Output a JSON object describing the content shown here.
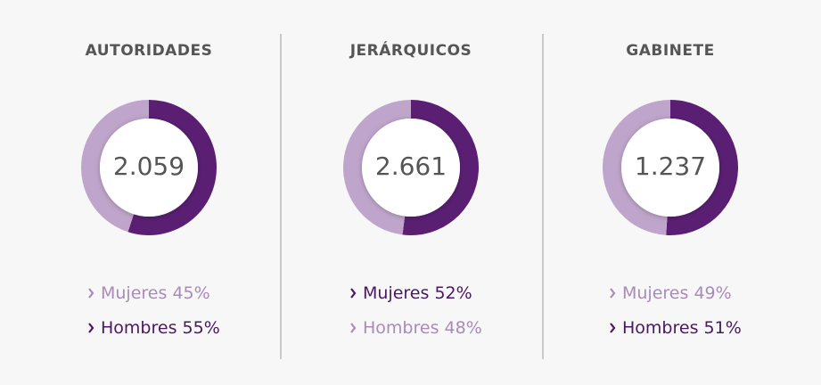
{
  "chart_data": [
    {
      "type": "pie",
      "title": "AUTORIDADES",
      "center_label": "2.059",
      "categories": [
        "Mujeres",
        "Hombres"
      ],
      "values": [
        45,
        55
      ],
      "value_labels": [
        "45%",
        "55%"
      ],
      "colors": [
        "#bfa5cb",
        "#5a1f73"
      ],
      "label_colors": [
        "#a98bb8",
        "#4a1762"
      ]
    },
    {
      "type": "pie",
      "title": "JERÁRQUICOS",
      "center_label": "2.661",
      "categories": [
        "Mujeres",
        "Hombres"
      ],
      "values": [
        52,
        48
      ],
      "value_labels": [
        "52%",
        "48%"
      ],
      "colors": [
        "#5a1f73",
        "#bfa5cb"
      ],
      "label_colors": [
        "#4a1762",
        "#a98bb8"
      ]
    },
    {
      "type": "pie",
      "title": "GABINETE",
      "center_label": "1.237",
      "categories": [
        "Mujeres",
        "Hombres"
      ],
      "values": [
        49,
        51
      ],
      "value_labels": [
        "49%",
        "51%"
      ],
      "colors": [
        "#bfa5cb",
        "#5a1f73"
      ],
      "label_colors": [
        "#a98bb8",
        "#4a1762"
      ]
    }
  ]
}
